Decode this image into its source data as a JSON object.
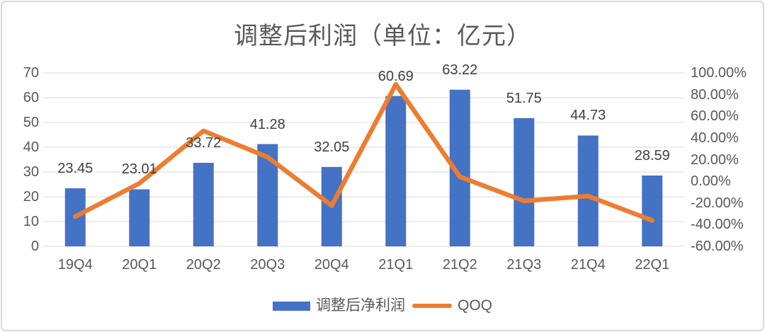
{
  "title": "调整后利润（单位：亿元）",
  "legend": {
    "bar_label": "调整后净利润",
    "line_label": "QOQ"
  },
  "colors": {
    "bar": "#4472C4",
    "line": "#ED7D31",
    "gridline": "#D9D9D9",
    "axis_text": "#595959",
    "data_label": "#404040",
    "title_text": "#595959",
    "frame_border": "#D9D9D9"
  },
  "chart_data": {
    "type": "bar",
    "subtype": "bar-line-combo",
    "title": "调整后利润（单位：亿元）",
    "xlabel": "",
    "ylabel": "",
    "grid": true,
    "legend_position": "bottom",
    "categories": [
      "19Q4",
      "20Q1",
      "20Q2",
      "20Q3",
      "20Q4",
      "21Q1",
      "21Q2",
      "21Q3",
      "21Q4",
      "22Q1"
    ],
    "series": [
      {
        "name": "调整后净利润",
        "type": "bar",
        "axis": "left",
        "color": "#4472C4",
        "values": [
          23.45,
          23.01,
          33.72,
          41.28,
          32.05,
          60.69,
          63.22,
          51.75,
          44.73,
          28.59
        ],
        "data_labels": [
          "23.45",
          "23.01",
          "33.72",
          "41.28",
          "32.05",
          "60.69",
          "63.22",
          "51.75",
          "44.73",
          "28.59"
        ]
      },
      {
        "name": "QOQ",
        "type": "line",
        "axis": "right",
        "color": "#ED7D31",
        "values_percent": [
          -32.5,
          -1.9,
          46.5,
          22.4,
          -22.4,
          89.4,
          4.2,
          -18.1,
          -13.6,
          -36.1
        ]
      }
    ],
    "left_axis": {
      "min": 0,
      "max": 70,
      "step": 10,
      "ticks_top_to_bottom": [
        "70",
        "60",
        "50",
        "40",
        "30",
        "20",
        "10",
        "0"
      ]
    },
    "right_axis": {
      "min": -60,
      "max": 100,
      "step": 20,
      "ticks_top_to_bottom": [
        "100.00%",
        "80.00%",
        "60.00%",
        "40.00%",
        "20.00%",
        "0.00%",
        "-20.00%",
        "-40.00%",
        "-60.00%"
      ]
    }
  }
}
